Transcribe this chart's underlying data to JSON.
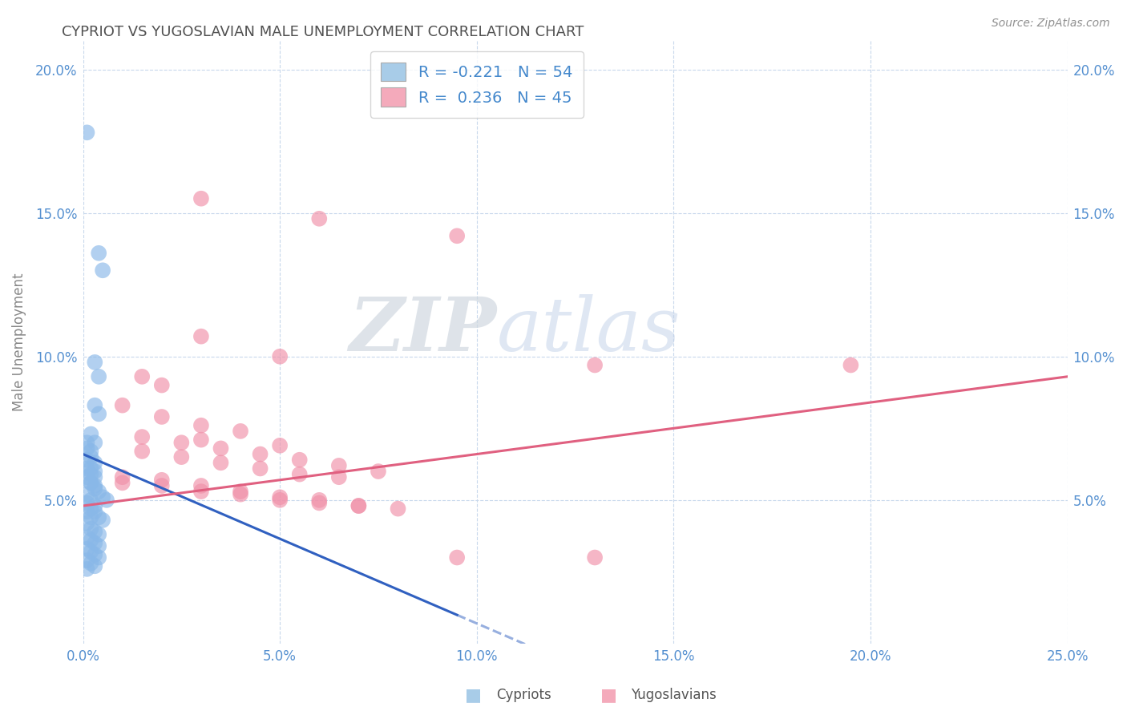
{
  "title": "CYPRIOT VS YUGOSLAVIAN MALE UNEMPLOYMENT CORRELATION CHART",
  "source": "Source: ZipAtlas.com",
  "ylabel": "Male Unemployment",
  "xmin": 0.0,
  "xmax": 0.25,
  "ymin": 0.0,
  "ymax": 0.21,
  "xticks": [
    0.0,
    0.05,
    0.1,
    0.15,
    0.2,
    0.25
  ],
  "xtick_labels": [
    "0.0%",
    "5.0%",
    "10.0%",
    "15.0%",
    "20.0%",
    "25.0%"
  ],
  "yticks": [
    0.05,
    0.1,
    0.15,
    0.2
  ],
  "ytick_labels": [
    "5.0%",
    "10.0%",
    "15.0%",
    "20.0%"
  ],
  "cypriot_color": "#89b8e8",
  "yugoslavian_color": "#f090a8",
  "cypriot_line_color": "#3060c0",
  "yugoslavian_line_color": "#e06080",
  "bg_color": "#ffffff",
  "grid_color": "#c8d8ec",
  "title_color": "#505050",
  "tick_color": "#5590d0",
  "legend_text_color": "#4488cc",
  "legend_cypriot_color": "#a8cce8",
  "legend_yugoslavian_color": "#f4aabb",
  "cypriot_dots": [
    [
      0.001,
      0.178
    ],
    [
      0.004,
      0.136
    ],
    [
      0.005,
      0.13
    ],
    [
      0.003,
      0.098
    ],
    [
      0.004,
      0.093
    ],
    [
      0.003,
      0.083
    ],
    [
      0.004,
      0.08
    ],
    [
      0.002,
      0.073
    ],
    [
      0.003,
      0.07
    ],
    [
      0.001,
      0.068
    ],
    [
      0.002,
      0.065
    ],
    [
      0.003,
      0.063
    ],
    [
      0.001,
      0.061
    ],
    [
      0.002,
      0.059
    ],
    [
      0.003,
      0.058
    ],
    [
      0.002,
      0.056
    ],
    [
      0.003,
      0.055
    ],
    [
      0.001,
      0.07
    ],
    [
      0.002,
      0.067
    ],
    [
      0.001,
      0.064
    ],
    [
      0.002,
      0.061
    ],
    [
      0.003,
      0.06
    ],
    [
      0.001,
      0.058
    ],
    [
      0.002,
      0.056
    ],
    [
      0.003,
      0.054
    ],
    [
      0.001,
      0.052
    ],
    [
      0.002,
      0.05
    ],
    [
      0.003,
      0.048
    ],
    [
      0.001,
      0.046
    ],
    [
      0.002,
      0.044
    ],
    [
      0.004,
      0.053
    ],
    [
      0.005,
      0.051
    ],
    [
      0.006,
      0.05
    ],
    [
      0.001,
      0.049
    ],
    [
      0.002,
      0.047
    ],
    [
      0.003,
      0.046
    ],
    [
      0.004,
      0.044
    ],
    [
      0.005,
      0.043
    ],
    [
      0.001,
      0.042
    ],
    [
      0.002,
      0.04
    ],
    [
      0.003,
      0.039
    ],
    [
      0.004,
      0.038
    ],
    [
      0.001,
      0.037
    ],
    [
      0.002,
      0.036
    ],
    [
      0.003,
      0.035
    ],
    [
      0.004,
      0.034
    ],
    [
      0.001,
      0.033
    ],
    [
      0.002,
      0.032
    ],
    [
      0.003,
      0.031
    ],
    [
      0.004,
      0.03
    ],
    [
      0.001,
      0.029
    ],
    [
      0.002,
      0.028
    ],
    [
      0.003,
      0.027
    ],
    [
      0.001,
      0.026
    ]
  ],
  "yugoslavian_dots": [
    [
      0.03,
      0.155
    ],
    [
      0.06,
      0.148
    ],
    [
      0.095,
      0.142
    ],
    [
      0.03,
      0.107
    ],
    [
      0.05,
      0.1
    ],
    [
      0.015,
      0.093
    ],
    [
      0.02,
      0.09
    ],
    [
      0.01,
      0.083
    ],
    [
      0.02,
      0.079
    ],
    [
      0.03,
      0.076
    ],
    [
      0.04,
      0.074
    ],
    [
      0.03,
      0.071
    ],
    [
      0.05,
      0.069
    ],
    [
      0.015,
      0.067
    ],
    [
      0.025,
      0.065
    ],
    [
      0.035,
      0.063
    ],
    [
      0.045,
      0.061
    ],
    [
      0.055,
      0.059
    ],
    [
      0.065,
      0.058
    ],
    [
      0.01,
      0.056
    ],
    [
      0.02,
      0.055
    ],
    [
      0.03,
      0.053
    ],
    [
      0.04,
      0.052
    ],
    [
      0.05,
      0.05
    ],
    [
      0.06,
      0.049
    ],
    [
      0.07,
      0.048
    ],
    [
      0.08,
      0.047
    ],
    [
      0.015,
      0.072
    ],
    [
      0.025,
      0.07
    ],
    [
      0.035,
      0.068
    ],
    [
      0.045,
      0.066
    ],
    [
      0.055,
      0.064
    ],
    [
      0.065,
      0.062
    ],
    [
      0.075,
      0.06
    ],
    [
      0.01,
      0.058
    ],
    [
      0.02,
      0.057
    ],
    [
      0.03,
      0.055
    ],
    [
      0.04,
      0.053
    ],
    [
      0.05,
      0.051
    ],
    [
      0.06,
      0.05
    ],
    [
      0.07,
      0.048
    ],
    [
      0.13,
      0.097
    ],
    [
      0.195,
      0.097
    ],
    [
      0.095,
      0.03
    ],
    [
      0.13,
      0.03
    ]
  ],
  "watermark_zip": "ZIP",
  "watermark_atlas": "atlas"
}
